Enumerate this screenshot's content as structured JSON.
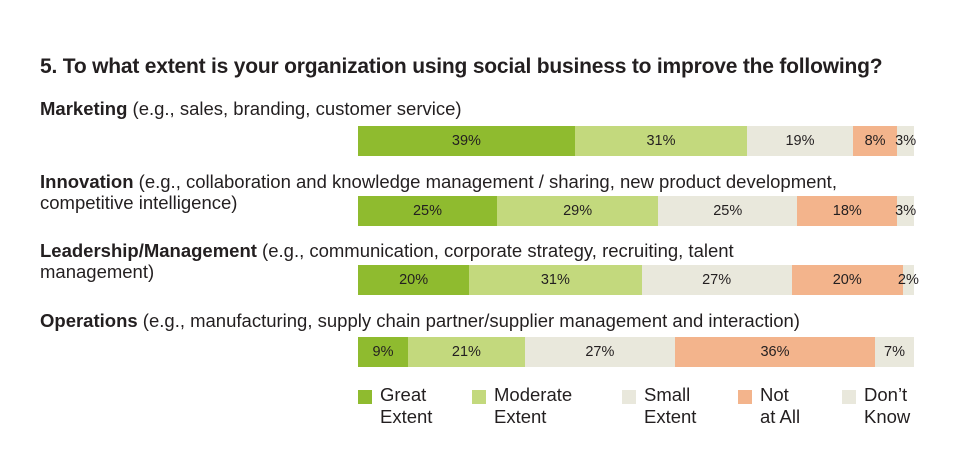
{
  "title": "5. To what extent is your organization using social business to improve the following?",
  "chart_data": {
    "type": "bar",
    "orientation": "horizontal",
    "stacked": true,
    "categories": [
      {
        "name": "Marketing",
        "detail": " (e.g., sales, branding, customer service)",
        "detail_line2": ""
      },
      {
        "name": "Innovation",
        "detail": " (e.g., collaboration and knowledge management / sharing, new product development,",
        "detail_line2": "competitive intelligence)"
      },
      {
        "name": "Leadership/Management",
        "detail": " (e.g., communication, corporate strategy, recruiting, talent",
        "detail_line2": "management)"
      },
      {
        "name": "Operations",
        "detail": " (e.g., manufacturing, supply chain partner/supplier management and interaction)",
        "detail_line2": ""
      }
    ],
    "series": [
      {
        "name": "Great Extent",
        "color": "#8fbb2f",
        "values": [
          39,
          25,
          20,
          9
        ]
      },
      {
        "name": "Moderate Extent",
        "color": "#c3d97d",
        "values": [
          31,
          29,
          31,
          21
        ]
      },
      {
        "name": "Small Extent",
        "color": "#e9e8dc",
        "values": [
          19,
          25,
          27,
          27
        ]
      },
      {
        "name": "Not at All",
        "color": "#f3b48c",
        "values": [
          8,
          18,
          20,
          36
        ]
      },
      {
        "name": "Don’t Know",
        "color": "#e9e8dc",
        "values": [
          3,
          3,
          2,
          7
        ]
      }
    ],
    "data_labels": [
      [
        "39%",
        "31%",
        "19%",
        "8%",
        "3%"
      ],
      [
        "25%",
        "29%",
        "25%",
        "18%",
        "3%"
      ],
      [
        "20%",
        "31%",
        "27%",
        "20%",
        "2%"
      ],
      [
        "9%",
        "21%",
        "27%",
        "36%",
        "7%"
      ]
    ],
    "legend": {
      "placement": "bottom",
      "items": [
        {
          "line1": "Great",
          "line2": "Extent",
          "color": "#8fbb2f"
        },
        {
          "line1": "Moderate",
          "line2": "Extent",
          "color": "#c3d97d"
        },
        {
          "line1": "Small",
          "line2": "Extent",
          "color": "#e9e8dc"
        },
        {
          "line1": "Not",
          "line2": "at All",
          "color": "#f3b48c"
        },
        {
          "line1": "Don’t",
          "line2": "Know",
          "color": "#e9e8dc"
        }
      ]
    }
  }
}
